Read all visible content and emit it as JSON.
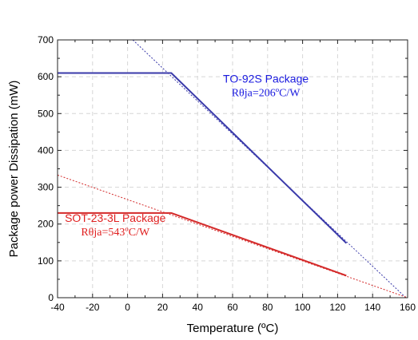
{
  "chart_data": {
    "type": "line",
    "xlabel": "Temperature (ºC)",
    "ylabel": "Package power Dissipation (mW)",
    "xlim": [
      -40,
      160
    ],
    "ylim": [
      0,
      700
    ],
    "x_ticks": [
      -40,
      -20,
      0,
      20,
      40,
      60,
      80,
      100,
      120,
      140,
      160
    ],
    "y_ticks": [
      0,
      100,
      200,
      300,
      400,
      500,
      600,
      700
    ],
    "grid": true,
    "series": [
      {
        "name": "TO-92S Package",
        "color": "#3a3aaa",
        "solid": [
          {
            "x": -40,
            "y": 610
          },
          {
            "x": 25,
            "y": 610
          },
          {
            "x": 125,
            "y": 148
          }
        ],
        "derating_extension": [
          {
            "x": 3,
            "y": 700
          },
          {
            "x": 159,
            "y": 0
          }
        ]
      },
      {
        "name": "SOT-23-3L Package",
        "color": "#d42a2a",
        "solid": [
          {
            "x": -40,
            "y": 230
          },
          {
            "x": 25,
            "y": 230
          },
          {
            "x": 125,
            "y": 60
          }
        ],
        "derating_extension": [
          {
            "x": -40,
            "y": 333
          },
          {
            "x": 160,
            "y": 0
          }
        ]
      }
    ],
    "annotations": [
      {
        "id": "to92",
        "line1": "TO-92S Package",
        "line2": "Rθja=206ºC/W",
        "color": "#1a1adf"
      },
      {
        "id": "sot23",
        "line1": "SOT-23-3L Package",
        "line2": "Rθja=543ºC/W",
        "color": "#e02020"
      }
    ]
  }
}
